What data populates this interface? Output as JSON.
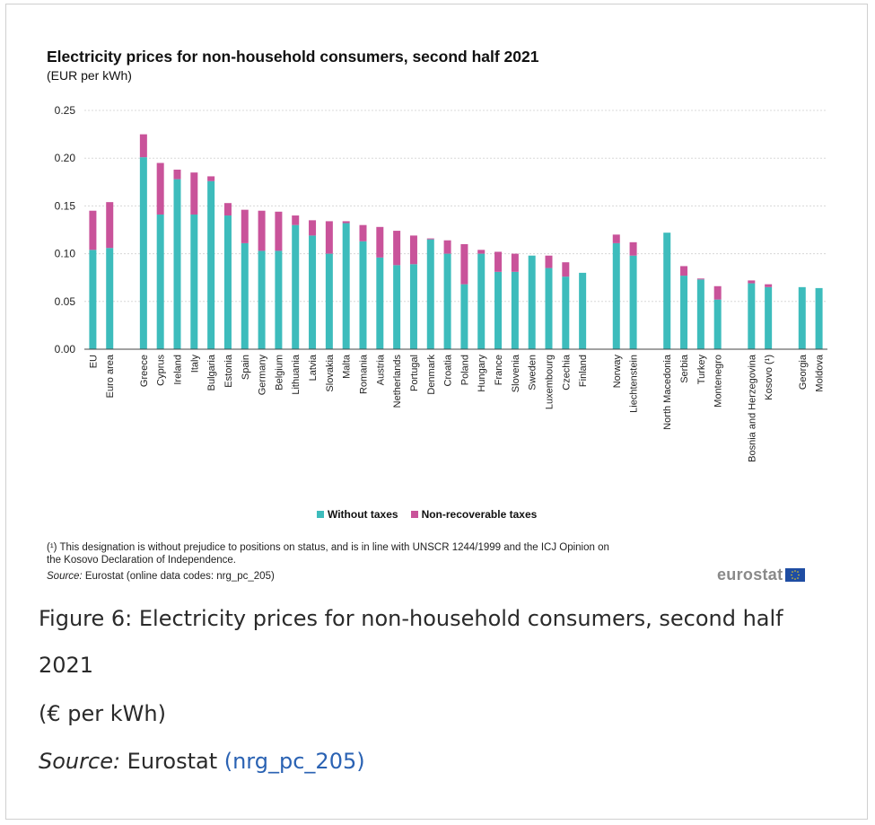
{
  "chart_data": {
    "type": "bar",
    "stacked": true,
    "title": "Electricity prices for non-household consumers, second half 2021",
    "subtitle": "(EUR per kWh)",
    "ylim": [
      0,
      0.25
    ],
    "yticks": [
      "0.00",
      "0.05",
      "0.10",
      "0.15",
      "0.20",
      "0.25"
    ],
    "grid": true,
    "legend_position": "bottom",
    "categories": [
      "EU",
      "Euro area",
      "",
      "Greece",
      "Cyprus",
      "Ireland",
      "Italy",
      "Bulgaria",
      "Estonia",
      "Spain",
      "Germany",
      "Belgium",
      "Lithuania",
      "Latvia",
      "Slovakia",
      "Malta",
      "Romania",
      "Austria",
      "Netherlands",
      "Portugal",
      "Denmark",
      "Croatia",
      "Poland",
      "Hungary",
      "France",
      "Slovenia",
      "Sweden",
      "Luxembourg",
      "Czechia",
      "Finland",
      "",
      "Norway",
      "Liechtenstein",
      "",
      "North Macedonia",
      "Serbia",
      "Turkey",
      "Montenegro",
      "",
      "Bosnia and Herzegovina",
      "Kosovo (¹)",
      "",
      "Georgia",
      "Moldova"
    ],
    "series": [
      {
        "name": "Without taxes",
        "color": "#3dbcbc",
        "values": [
          0.104,
          0.106,
          null,
          0.201,
          0.141,
          0.178,
          0.141,
          0.176,
          0.14,
          0.111,
          0.103,
          0.103,
          0.13,
          0.119,
          0.1,
          0.132,
          0.113,
          0.096,
          0.088,
          0.089,
          0.115,
          0.1,
          0.068,
          0.1,
          0.081,
          0.081,
          0.098,
          0.085,
          0.076,
          0.08,
          null,
          0.111,
          0.098,
          null,
          0.122,
          0.077,
          0.073,
          0.052,
          null,
          0.069,
          0.065,
          null,
          0.065,
          0.064
        ]
      },
      {
        "name": "Non-recoverable taxes",
        "color": "#c9539a",
        "values": [
          0.041,
          0.048,
          null,
          0.024,
          0.054,
          0.01,
          0.044,
          0.005,
          0.013,
          0.035,
          0.042,
          0.041,
          0.01,
          0.016,
          0.034,
          0.002,
          0.017,
          0.032,
          0.036,
          0.03,
          0.001,
          0.014,
          0.042,
          0.004,
          0.021,
          0.019,
          0.0,
          0.013,
          0.015,
          0.0,
          null,
          0.009,
          0.014,
          null,
          0.0,
          0.01,
          0.001,
          0.014,
          null,
          0.003,
          0.003,
          null,
          0.0,
          0.0
        ]
      }
    ]
  },
  "legend": {
    "without_taxes": "Without taxes",
    "non_recoverable": "Non-recoverable taxes"
  },
  "footnote": "(¹) This designation is without prejudice to positions on status, and is in line with UNSCR 1244/1999 and the ICJ Opinion on the Kosovo Declaration of Independence.",
  "source_label": "Source:",
  "source_text": " Eurostat (online data codes: nrg_pc_205)",
  "logo_text": "eurostat",
  "caption": {
    "line1": "Figure 6: Electricity prices for non-household consumers, second half",
    "line2": "2021",
    "line3": "(€ per kWh)",
    "source_label": "Source:",
    "source_text": " Eurostat ",
    "source_link": "(nrg_pc_205)"
  }
}
